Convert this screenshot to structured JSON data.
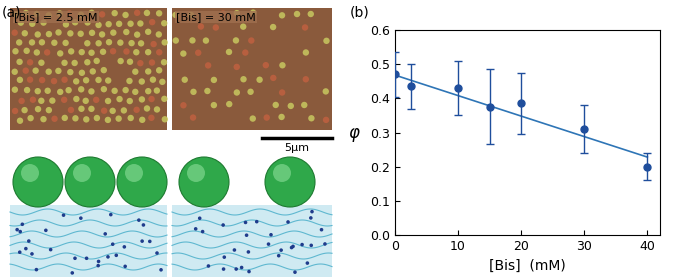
{
  "panel_a": {
    "label": "(a)",
    "images": [
      {
        "label": "[Bis] = 2.5 mM"
      },
      {
        "label": "[Bis] = 30 mM"
      }
    ],
    "scale_bar": "5μm"
  },
  "chart_data": {
    "type": "scatter",
    "title": "(b)",
    "x_label": "[Bis]  (mM)",
    "y_label": "φ",
    "series": [
      {
        "type": "scatter",
        "color": "#1f4e9c",
        "marker": "circle",
        "x": [
          0,
          2.5,
          10,
          15,
          20,
          30,
          40
        ],
        "values": [
          0.47,
          0.435,
          0.43,
          0.375,
          0.385,
          0.31,
          0.2
        ],
        "error": [
          0.065,
          0.065,
          0.08,
          0.11,
          0.09,
          0.07,
          0.04
        ]
      },
      {
        "type": "line",
        "color": "#2e75b6",
        "line_style": "solid",
        "x": [
          0,
          40
        ],
        "values": [
          0.468,
          0.228
        ]
      }
    ],
    "xlim": [
      0,
      42
    ],
    "ylim": [
      0,
      0.6
    ],
    "xticks": [
      0,
      10,
      20,
      30,
      40
    ],
    "yticks": [
      {
        "value": 0,
        "label": "0.0"
      },
      0.1,
      0.2,
      0.3,
      0.4,
      0.5,
      0.6
    ],
    "grid": false
  }
}
